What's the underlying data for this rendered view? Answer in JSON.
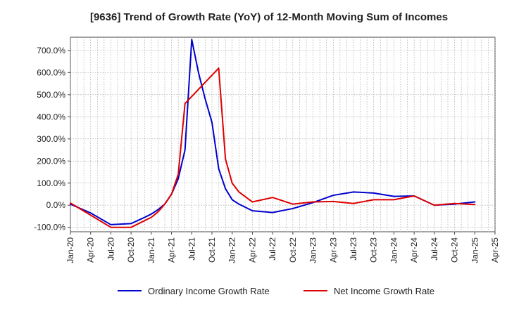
{
  "chart_data": {
    "type": "line",
    "title": "[9636]  Trend of Growth Rate (YoY) of 12-Month Moving Sum of Incomes",
    "xlabel": "",
    "ylabel": "",
    "ylim": [
      -120,
      760
    ],
    "yticks": [
      -100,
      0,
      100,
      200,
      300,
      400,
      500,
      600,
      700
    ],
    "ytick_labels": [
      "-100.0%",
      "0.0%",
      "100.0%",
      "200.0%",
      "300.0%",
      "400.0%",
      "500.0%",
      "600.0%",
      "700.0%"
    ],
    "x_range": [
      "2020-01",
      "2025-04"
    ],
    "xticks": [
      "2020-01",
      "2020-04",
      "2020-07",
      "2020-10",
      "2021-01",
      "2021-04",
      "2021-07",
      "2021-10",
      "2022-01",
      "2022-04",
      "2022-07",
      "2022-10",
      "2023-01",
      "2023-04",
      "2023-07",
      "2023-10",
      "2024-01",
      "2024-04",
      "2024-07",
      "2024-10",
      "2025-01",
      "2025-04"
    ],
    "xtick_labels": [
      "Jan-20",
      "Apr-20",
      "Jul-20",
      "Oct-20",
      "Jan-21",
      "Apr-21",
      "Jul-21",
      "Oct-21",
      "Jan-22",
      "Apr-22",
      "Jul-22",
      "Oct-22",
      "Jan-23",
      "Apr-23",
      "Jul-23",
      "Oct-23",
      "Jan-24",
      "Apr-24",
      "Jul-24",
      "Oct-24",
      "Jan-25",
      "Apr-25"
    ],
    "grid": true,
    "legend_position": "bottom",
    "series": [
      {
        "name": "Ordinary Income Growth Rate",
        "color": "#0000cc",
        "points": [
          [
            "2020-01",
            5
          ],
          [
            "2020-04",
            -35
          ],
          [
            "2020-07",
            -88
          ],
          [
            "2020-10",
            -83
          ],
          [
            "2020-12",
            -55
          ],
          [
            "2021-01",
            -40
          ],
          [
            "2021-02",
            -20
          ],
          [
            "2021-03",
            5
          ],
          [
            "2021-04",
            50
          ],
          [
            "2021-05",
            120
          ],
          [
            "2021-06",
            250
          ],
          [
            "2021-07",
            750
          ],
          [
            "2021-08",
            600
          ],
          [
            "2021-09",
            480
          ],
          [
            "2021-10",
            375
          ],
          [
            "2021-11",
            165
          ],
          [
            "2021-12",
            75
          ],
          [
            "2022-01",
            25
          ],
          [
            "2022-02",
            5
          ],
          [
            "2022-04",
            -25
          ],
          [
            "2022-07",
            -33
          ],
          [
            "2022-10",
            -15
          ],
          [
            "2023-01",
            12
          ],
          [
            "2023-04",
            45
          ],
          [
            "2023-07",
            60
          ],
          [
            "2023-10",
            55
          ],
          [
            "2024-01",
            40
          ],
          [
            "2024-04",
            42
          ],
          [
            "2024-07",
            0
          ],
          [
            "2024-10",
            5
          ],
          [
            "2025-01",
            15
          ]
        ]
      },
      {
        "name": "Net Income Growth Rate",
        "color": "#dd0000",
        "points": [
          [
            "2020-01",
            10
          ],
          [
            "2020-04",
            -45
          ],
          [
            "2020-07",
            -100
          ],
          [
            "2020-10",
            -100
          ],
          [
            "2021-01",
            -55
          ],
          [
            "2021-02",
            -30
          ],
          [
            "2021-03",
            5
          ],
          [
            "2021-04",
            50
          ],
          [
            "2021-05",
            140
          ],
          [
            "2021-06",
            460
          ],
          [
            "2021-11",
            620
          ],
          [
            "2021-12",
            210
          ],
          [
            "2022-01",
            100
          ],
          [
            "2022-02",
            60
          ],
          [
            "2022-04",
            15
          ],
          [
            "2022-07",
            35
          ],
          [
            "2022-10",
            5
          ],
          [
            "2023-01",
            15
          ],
          [
            "2023-04",
            17
          ],
          [
            "2023-07",
            8
          ],
          [
            "2023-10",
            25
          ],
          [
            "2024-01",
            25
          ],
          [
            "2024-04",
            42
          ],
          [
            "2024-07",
            0
          ],
          [
            "2024-10",
            8
          ],
          [
            "2025-01",
            3
          ]
        ]
      }
    ]
  }
}
